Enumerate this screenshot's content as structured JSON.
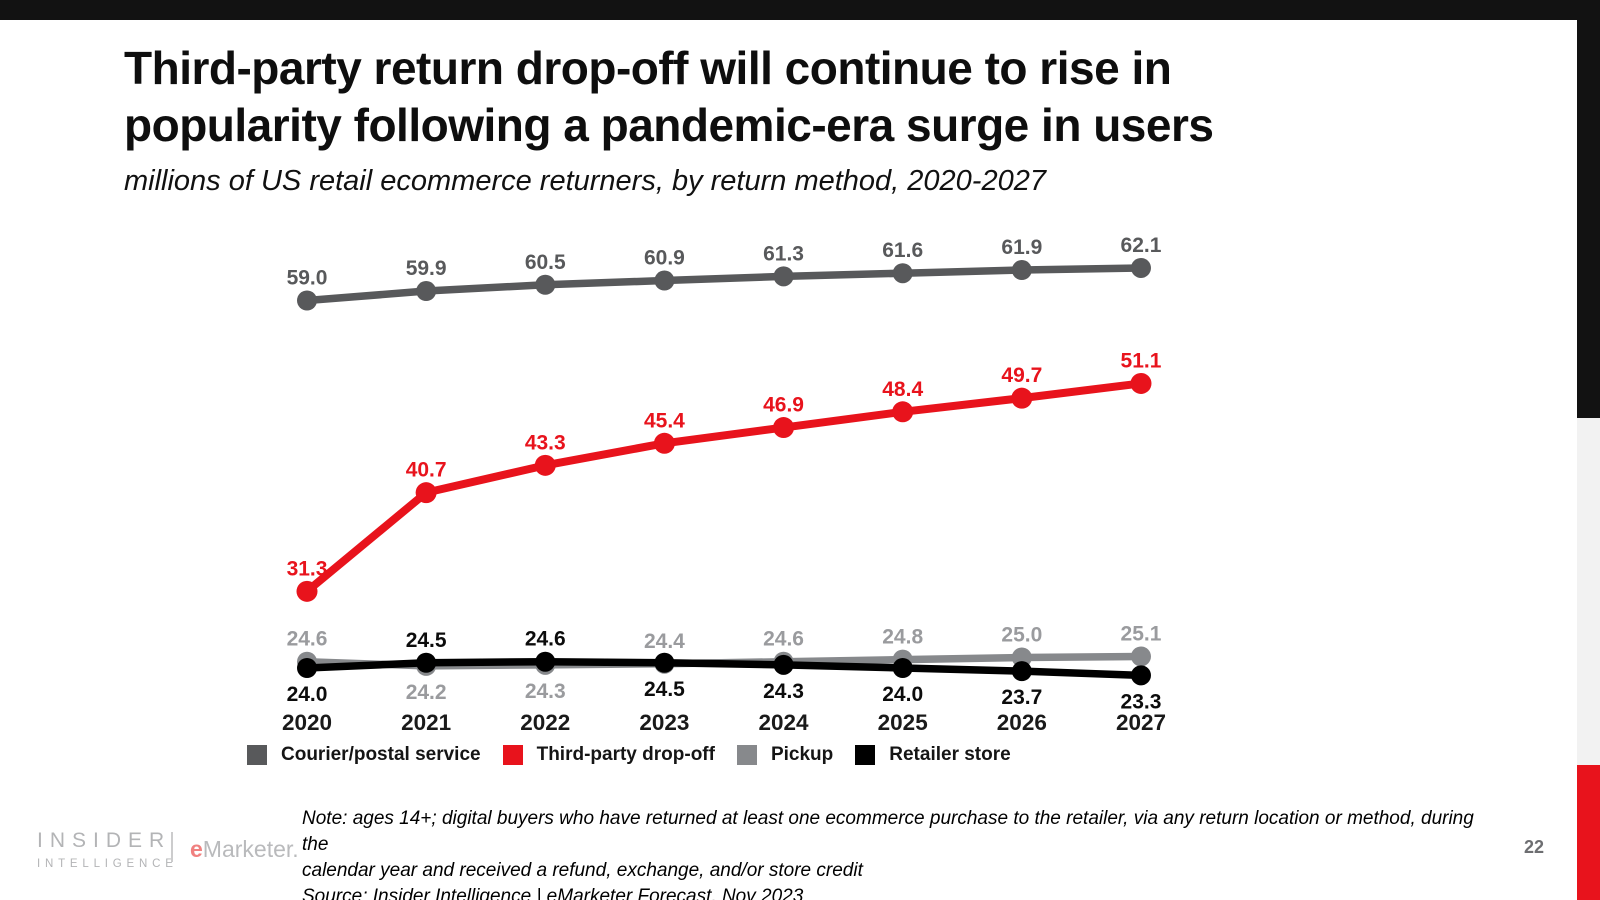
{
  "page": {
    "title_line1": "Third-party return drop-off will continue to rise in",
    "title_line2": "popularity following a pandemic-era surge in users",
    "subtitle": "millions of US retail ecommerce returners, by return method, 2020-2027",
    "page_number": "22",
    "background_color": "#ffffff",
    "top_bar_color": "#121212",
    "edge_strip_colors": {
      "top": "#121212",
      "middle": "#f2f2f2",
      "bottom": "#e8131c"
    }
  },
  "chart_data": {
    "type": "line",
    "title": "Third-party return drop-off will continue to rise in popularity following a pandemic-era surge in users",
    "subtitle": "millions of US retail ecommerce returners, by return method, 2020-2027",
    "categories": [
      "2020",
      "2021",
      "2022",
      "2023",
      "2024",
      "2025",
      "2026",
      "2027"
    ],
    "series": [
      {
        "name": "Courier/postal service",
        "color": "#58595b",
        "label_color": "#58595b",
        "values": [
          59.0,
          59.9,
          60.5,
          60.9,
          61.3,
          61.6,
          61.9,
          62.1
        ],
        "label_positions": [
          "above",
          "above",
          "above",
          "above",
          "above",
          "above",
          "above",
          "above"
        ]
      },
      {
        "name": "Third-party drop-off",
        "color": "#e8131c",
        "label_color": "#e8131c",
        "values": [
          31.3,
          40.7,
          43.3,
          45.4,
          46.9,
          48.4,
          49.7,
          51.1
        ],
        "label_positions": [
          "above",
          "above",
          "above",
          "above",
          "above",
          "above",
          "above",
          "above"
        ]
      },
      {
        "name": "Pickup",
        "color": "#87898c",
        "label_color": "#9a9b9e",
        "values": [
          24.6,
          24.2,
          24.3,
          24.4,
          24.6,
          24.8,
          25.0,
          25.1
        ],
        "label_positions": [
          "above",
          "below",
          "below",
          "above",
          "above",
          "above",
          "above",
          "above"
        ]
      },
      {
        "name": "Retailer store",
        "color": "#000000",
        "label_color": "#0c0c0c",
        "values": [
          24.0,
          24.5,
          24.6,
          24.5,
          24.3,
          24.0,
          23.7,
          23.3
        ],
        "label_positions": [
          "below",
          "above",
          "above",
          "below",
          "below",
          "below",
          "below",
          "below"
        ]
      }
    ],
    "xlabel": "",
    "ylabel": "",
    "ylim": [
      20,
      65
    ],
    "grid": false,
    "axes_visible": false,
    "legend_position": "bottom",
    "x_tick_color": "#1a1a1a"
  },
  "footer": {
    "note_line1": "Note: ages 14+; digital buyers who have returned at least one ecommerce purchase to the retailer, via any return location or method, during the",
    "note_line2": "calendar year and received a refund, exchange, and/or store credit",
    "source": "Source: Insider Intelligence | eMarketer Forecast, Nov 2023"
  },
  "logo": {
    "brand_top": "INSIDER",
    "brand_bottom": "INTELLIGENCE",
    "partner_e": "e",
    "partner_rest": "Marketer."
  }
}
